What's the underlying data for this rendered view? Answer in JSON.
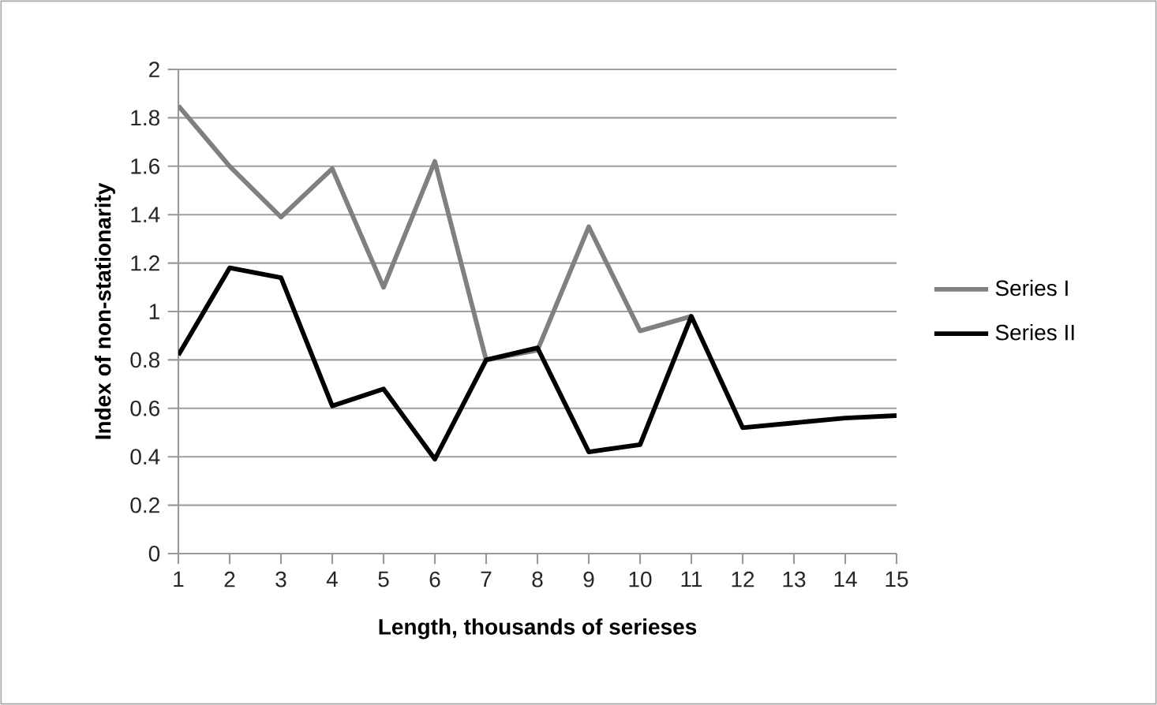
{
  "chart_data": {
    "type": "line",
    "xlabel": "Length, thousands  of serieses",
    "ylabel": "Index of non-stationarity",
    "x": [
      1,
      2,
      3,
      4,
      5,
      6,
      7,
      8,
      9,
      10,
      11,
      12,
      13,
      14,
      15
    ],
    "series": [
      {
        "name": "Series I",
        "color": "#808080",
        "values": [
          1.85,
          1.6,
          1.39,
          1.59,
          1.1,
          1.62,
          0.8,
          0.84,
          1.35,
          0.92,
          0.98,
          null,
          null,
          null,
          null
        ]
      },
      {
        "name": "Series II",
        "color": "#000000",
        "values": [
          0.82,
          1.18,
          1.14,
          0.61,
          0.68,
          0.39,
          0.8,
          0.85,
          0.42,
          0.45,
          0.98,
          0.52,
          0.54,
          0.56,
          0.57
        ]
      }
    ],
    "xlim": [
      1,
      15
    ],
    "xticks": [
      1,
      2,
      3,
      4,
      5,
      6,
      7,
      8,
      9,
      10,
      11,
      12,
      13,
      14,
      15
    ],
    "ylim": [
      0,
      2
    ],
    "yticks": [
      0,
      0.2,
      0.4,
      0.6,
      0.8,
      1,
      1.2,
      1.4,
      1.6,
      1.8,
      2
    ],
    "grid": "y",
    "legend": "right",
    "marker": "none",
    "line_style": "solid"
  }
}
